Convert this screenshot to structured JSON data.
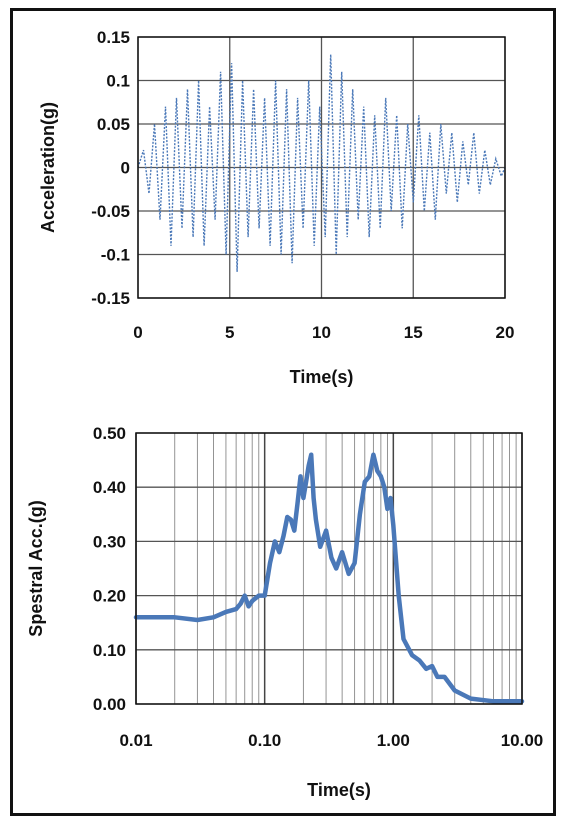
{
  "chart_data": [
    {
      "type": "line",
      "xlabel": "Time(s)",
      "ylabel": "Acceleration(g)",
      "xlim": [
        0,
        20
      ],
      "ylim": [
        -0.15,
        0.15
      ],
      "x_ticks": [
        "0",
        "5",
        "10",
        "15",
        "20"
      ],
      "y_ticks": [
        "0.15",
        "0.1",
        "0.05",
        "0",
        "-0.05",
        "-0.1",
        "-0.15"
      ],
      "grid": true,
      "series_color": "#4a78b8",
      "line_style": "dotted",
      "series": [
        {
          "x": [
            0,
            0.3,
            0.6,
            0.9,
            1.2,
            1.5,
            1.8,
            2.1,
            2.4,
            2.7,
            3.0,
            3.3,
            3.6,
            3.9,
            4.2,
            4.5,
            4.8,
            5.1,
            5.4,
            5.7,
            6.0,
            6.3,
            6.6,
            6.9,
            7.2,
            7.5,
            7.8,
            8.1,
            8.4,
            8.7,
            9.0,
            9.3,
            9.6,
            9.9,
            10.2,
            10.5,
            10.8,
            11.1,
            11.4,
            11.7,
            12.0,
            12.3,
            12.6,
            12.9,
            13.2,
            13.5,
            13.8,
            14.1,
            14.4,
            14.7,
            15.0,
            15.3,
            15.6,
            15.9,
            16.2,
            16.5,
            16.8,
            17.1,
            17.4,
            17.7,
            18.0,
            18.3,
            18.6,
            18.9,
            19.2,
            19.5,
            19.8,
            20.0
          ],
          "y": [
            0,
            0.02,
            -0.03,
            0.05,
            -0.06,
            0.07,
            -0.09,
            0.08,
            -0.07,
            0.09,
            -0.08,
            0.1,
            -0.09,
            0.07,
            -0.06,
            0.11,
            -0.1,
            0.12,
            -0.12,
            0.1,
            -0.08,
            0.09,
            -0.07,
            0.08,
            -0.09,
            0.1,
            -0.1,
            0.09,
            -0.11,
            0.08,
            -0.07,
            0.1,
            -0.09,
            0.07,
            -0.08,
            0.13,
            -0.1,
            0.11,
            -0.08,
            0.09,
            -0.06,
            0.07,
            -0.08,
            0.06,
            -0.07,
            0.08,
            -0.05,
            0.06,
            -0.07,
            0.05,
            -0.04,
            0.06,
            -0.05,
            0.04,
            -0.06,
            0.05,
            -0.03,
            0.04,
            -0.04,
            0.03,
            -0.02,
            0.04,
            -0.03,
            0.02,
            -0.02,
            0.01,
            -0.01,
            0
          ]
        }
      ]
    },
    {
      "type": "line",
      "xlabel": "Time(s)",
      "ylabel": "Spestral Acc.(g)",
      "x_scale": "log",
      "xlim": [
        0.01,
        10
      ],
      "ylim": [
        0,
        0.5
      ],
      "x_ticks": [
        "0.01",
        "0.10",
        "1.00",
        "10.00"
      ],
      "y_ticks": [
        "0.50",
        "0.40",
        "0.30",
        "0.20",
        "0.10",
        "0.00"
      ],
      "grid": true,
      "series_color": "#4a78b8",
      "line_style": "solid",
      "series": [
        {
          "x": [
            0.01,
            0.02,
            0.03,
            0.04,
            0.05,
            0.06,
            0.065,
            0.07,
            0.075,
            0.08,
            0.09,
            0.1,
            0.11,
            0.12,
            0.13,
            0.14,
            0.15,
            0.16,
            0.17,
            0.18,
            0.19,
            0.2,
            0.21,
            0.22,
            0.23,
            0.24,
            0.25,
            0.27,
            0.3,
            0.33,
            0.36,
            0.4,
            0.45,
            0.5,
            0.55,
            0.6,
            0.65,
            0.7,
            0.75,
            0.8,
            0.85,
            0.9,
            0.95,
            1.0,
            1.1,
            1.2,
            1.4,
            1.6,
            1.8,
            2.0,
            2.2,
            2.5,
            3.0,
            4.0,
            6.0,
            10.0
          ],
          "y": [
            0.16,
            0.16,
            0.155,
            0.16,
            0.17,
            0.175,
            0.185,
            0.2,
            0.18,
            0.19,
            0.2,
            0.2,
            0.26,
            0.3,
            0.28,
            0.31,
            0.345,
            0.34,
            0.32,
            0.37,
            0.42,
            0.38,
            0.41,
            0.44,
            0.46,
            0.38,
            0.34,
            0.29,
            0.32,
            0.27,
            0.25,
            0.28,
            0.24,
            0.26,
            0.35,
            0.41,
            0.42,
            0.46,
            0.43,
            0.42,
            0.4,
            0.36,
            0.38,
            0.33,
            0.2,
            0.12,
            0.09,
            0.08,
            0.065,
            0.07,
            0.05,
            0.05,
            0.025,
            0.01,
            0.005,
            0.005
          ]
        }
      ]
    }
  ]
}
